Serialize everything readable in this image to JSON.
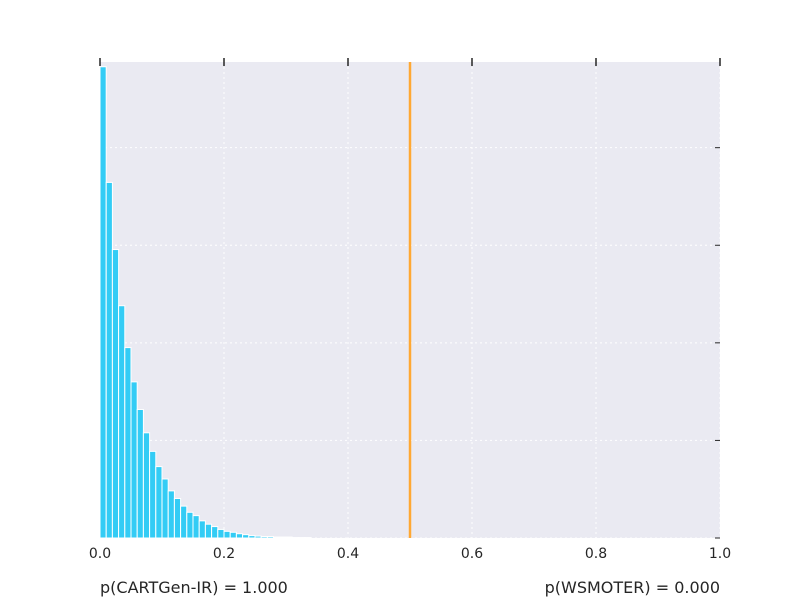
{
  "chart_data": {
    "type": "bar",
    "title": "",
    "xlabel": "",
    "ylabel": "",
    "xlim": [
      0.0,
      1.0
    ],
    "ylim": [
      0,
      1
    ],
    "xticks": [
      "0.0",
      "0.2",
      "0.4",
      "0.6",
      "0.8",
      "1.0"
    ],
    "yticks_unlabeled": [
      0.0,
      0.205,
      0.41,
      0.615,
      0.82
    ],
    "grid": true,
    "background": "#eaeaf2",
    "bar_color": "#33ccf5",
    "bar_edge_color": "#ffffff",
    "bin_width": 0.01,
    "bins_start": [
      0.0,
      0.01,
      0.02,
      0.03,
      0.04,
      0.05,
      0.06,
      0.07,
      0.08,
      0.09,
      0.1,
      0.11,
      0.12,
      0.13,
      0.14,
      0.15,
      0.16,
      0.17,
      0.18,
      0.19,
      0.2,
      0.21,
      0.22,
      0.23,
      0.24,
      0.25,
      0.26,
      0.27,
      0.28,
      0.29,
      0.3,
      0.31,
      0.32,
      0.33
    ],
    "values": [
      0.99,
      0.747,
      0.606,
      0.488,
      0.4,
      0.328,
      0.27,
      0.221,
      0.182,
      0.15,
      0.124,
      0.099,
      0.083,
      0.067,
      0.054,
      0.047,
      0.036,
      0.029,
      0.024,
      0.018,
      0.014,
      0.012,
      0.009,
      0.007,
      0.005,
      0.004,
      0.003,
      0.003,
      0.002,
      0.002,
      0.002,
      0.001,
      0.001,
      0.001
    ],
    "vline": {
      "x": 0.5,
      "color": "#ffa833"
    }
  },
  "footer": {
    "left": "p(CARTGen-IR) = 1.000",
    "right": "p(WSMOTER) = 0.000"
  }
}
